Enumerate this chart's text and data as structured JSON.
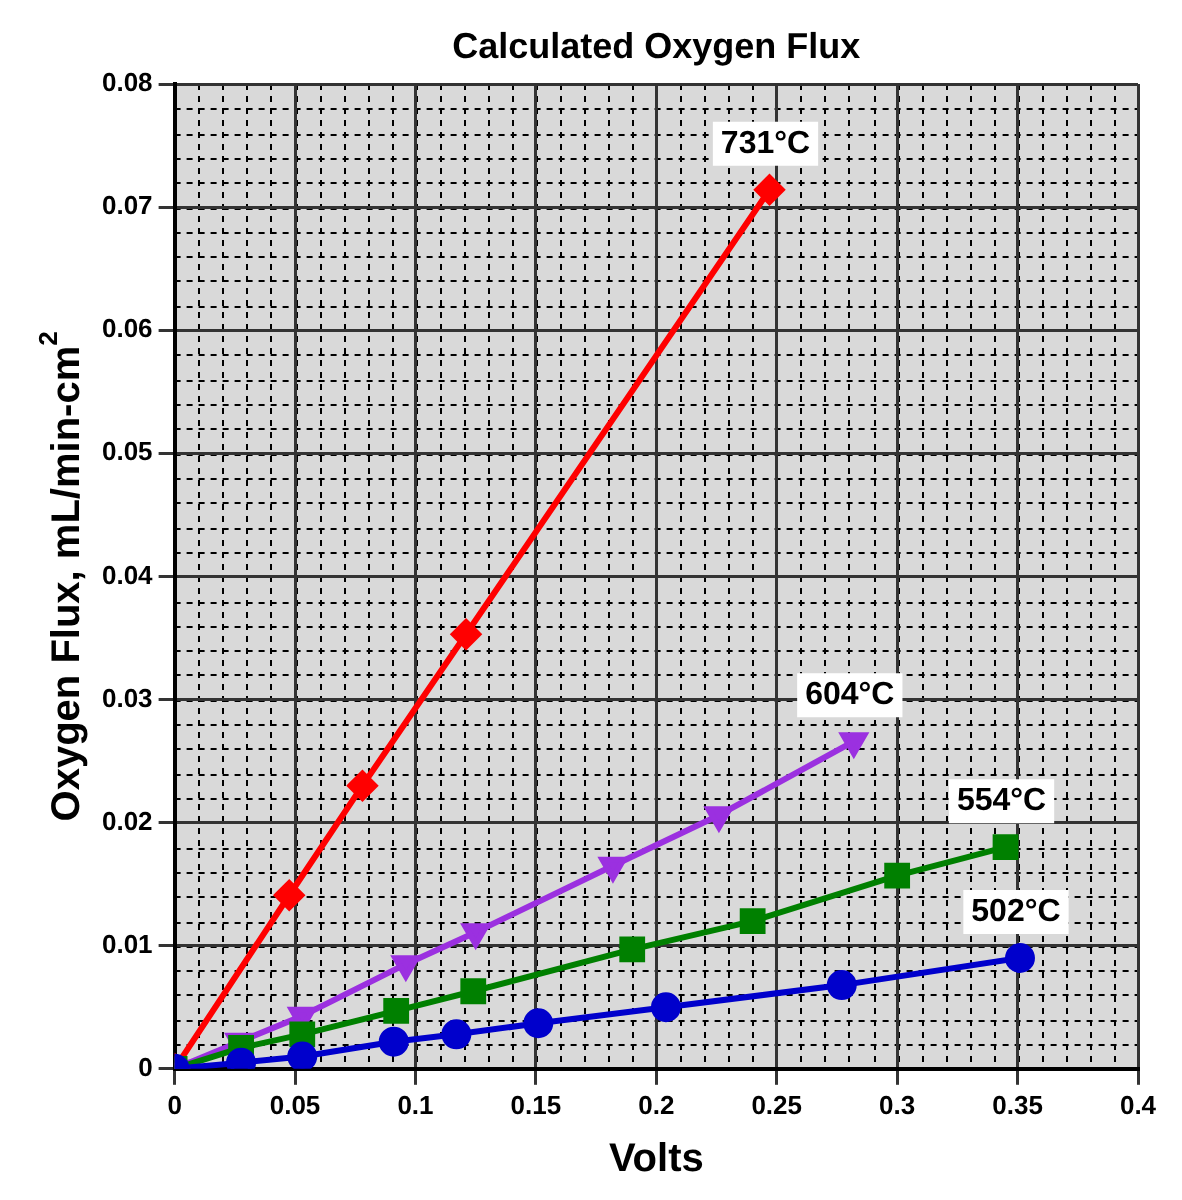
{
  "chart_data": {
    "type": "line",
    "title": "Calculated Oxygen Flux",
    "xlabel": "Volts",
    "ylabel": "Oxygen Flux, mL/min-cm$^{2}$",
    "xlim": [
      0,
      0.4
    ],
    "xticks": [
      0,
      0.05,
      0.1,
      0.15,
      0.2,
      0.25,
      0.3,
      0.35,
      0.4
    ],
    "ylim": [
      0,
      0.08
    ],
    "yticks": [
      0,
      0.01,
      0.02,
      0.03,
      0.04,
      0.05,
      0.06,
      0.07,
      0.08
    ],
    "grid": true,
    "legend": false,
    "line_style": "solid",
    "series": [
      {
        "name": "731°C",
        "color": "#ff0000",
        "marker": "diamond",
        "x": [
          0,
          0.0476,
          0.078,
          0.121,
          0.247
        ],
        "values": [
          0,
          0.0141,
          0.023,
          0.0353,
          0.0714
        ]
      },
      {
        "name": "604°C",
        "color": "#9b30e0",
        "marker": "triangle",
        "x": [
          0,
          0.027,
          0.053,
          0.096,
          0.125,
          0.182,
          0.226,
          0.282
        ],
        "values": [
          0,
          0.0022,
          0.0043,
          0.0085,
          0.0111,
          0.0165,
          0.0206,
          0.0266
        ]
      },
      {
        "name": "554°C",
        "color": "#008000",
        "marker": "square",
        "x": [
          0,
          0.0276,
          0.053,
          0.092,
          0.124,
          0.19,
          0.24,
          0.3,
          0.345
        ],
        "values": [
          0,
          0.0017,
          0.0028,
          0.0047,
          0.0063,
          0.0097,
          0.012,
          0.0157,
          0.018
        ]
      },
      {
        "name": "502°C",
        "color": "#0000cc",
        "marker": "circle",
        "x": [
          0,
          0.0276,
          0.053,
          0.091,
          0.117,
          0.151,
          0.204,
          0.277,
          0.351
        ],
        "values": [
          0,
          0.0005,
          0.001,
          0.0022,
          0.0028,
          0.0037,
          0.005,
          0.0068,
          0.009
        ]
      }
    ]
  }
}
